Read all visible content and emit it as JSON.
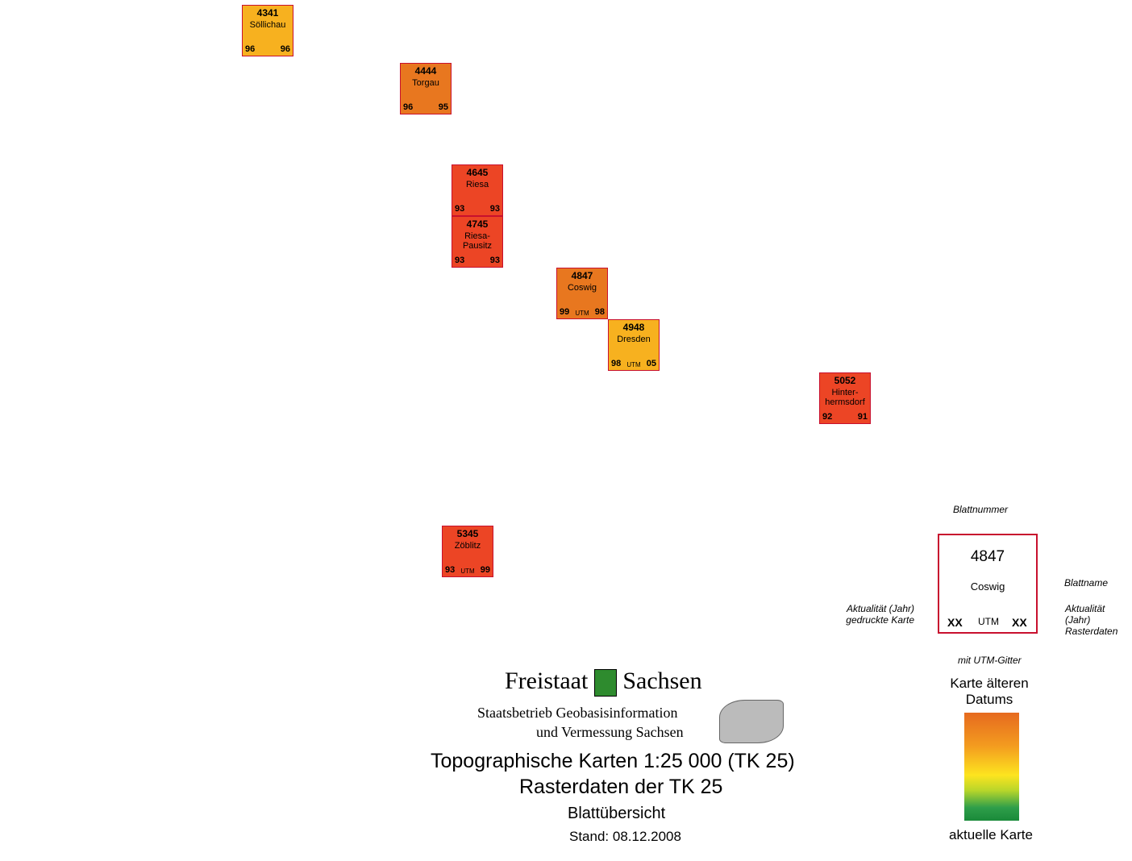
{
  "sheets": [
    {
      "number": "4341",
      "name": "Söllichau",
      "year_print": "96",
      "year_raster": "96",
      "utm": "",
      "color": "#f7b11f"
    },
    {
      "number": "4444",
      "name": "Torgau",
      "year_print": "96",
      "year_raster": "95",
      "utm": "",
      "color": "#e8771f"
    },
    {
      "number": "4645",
      "name": "Riesa",
      "year_print": "93",
      "year_raster": "93",
      "utm": "",
      "color": "#ec4525"
    },
    {
      "number": "4745",
      "name": "Riesa-Pausitz",
      "year_print": "93",
      "year_raster": "93",
      "utm": "",
      "color": "#ec4525"
    },
    {
      "number": "4847",
      "name": "Coswig",
      "year_print": "99",
      "year_raster": "98",
      "utm": "UTM",
      "color": "#e8771f"
    },
    {
      "number": "4948",
      "name": "Dresden",
      "year_print": "98",
      "year_raster": "05",
      "utm": "UTM",
      "color": "#f7b11f"
    },
    {
      "number": "5052",
      "name": "Hinter-hermsdorf",
      "year_print": "92",
      "year_raster": "91",
      "utm": "",
      "color": "#ec4525"
    },
    {
      "number": "5345",
      "name": "Zöblitz",
      "year_print": "93",
      "year_raster": "99",
      "utm": "UTM",
      "color": "#ec4525"
    }
  ],
  "logo": {
    "line1": "Freistaat",
    "line2": "Sachsen",
    "sub1": "Staatsbetrieb Geobasisinformation",
    "sub2": "und Vermessung Sachsen"
  },
  "title": {
    "line1": "Topographische Karten 1:25 000 (TK 25)",
    "line2": "Rasterdaten der TK 25",
    "line3": "Blattübersicht",
    "date": "Stand: 08.12.2008"
  },
  "legend": {
    "blattnummer": "Blattnummer",
    "example_number": "4847",
    "example_name": "Coswig",
    "blattname": "Blattname",
    "xx": "XX",
    "utm": "UTM",
    "left_note": "Aktualität (Jahr) gedruckte Karte",
    "right_note": "Aktualität (Jahr) Rasterdaten",
    "utm_note": "mit UTM-Gitter",
    "older": "Karte älteren Datums",
    "current": "aktuelle Karte"
  }
}
